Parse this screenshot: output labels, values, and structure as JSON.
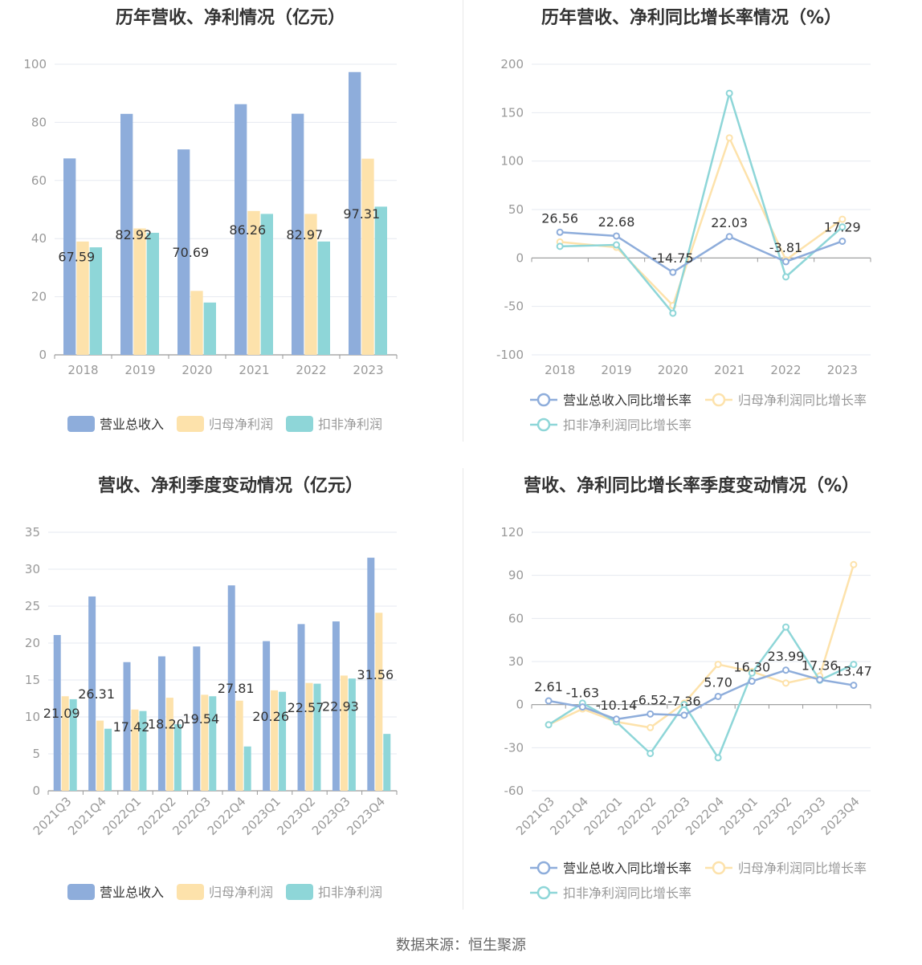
{
  "colors": {
    "revenue": "#8eaddb",
    "net_profit": "#fde2ab",
    "deducted_profit": "#8ed6d8",
    "revenue_growth": "#8eaddb",
    "net_profit_growth": "#fde2ab",
    "deducted_growth": "#8ed6d8",
    "axis_text": "#999999",
    "grid": "#e6e9f0",
    "title": "#333333"
  },
  "source_text": "数据来源：恒生聚源",
  "chart_data": [
    {
      "type": "bar",
      "title": "历年营收、净利情况（亿元）",
      "categories": [
        "2018",
        "2019",
        "2020",
        "2021",
        "2022",
        "2023"
      ],
      "ylim": [
        0,
        100
      ],
      "yticks": [
        "0",
        "20",
        "40",
        "60",
        "80",
        "100"
      ],
      "legend_position": "bottom",
      "series": [
        {
          "name": "营业总收入",
          "values": [
            67.59,
            82.92,
            70.69,
            86.26,
            82.97,
            97.31
          ],
          "labels": [
            "67.59",
            "82.92",
            "70.69",
            "86.26",
            "82.97",
            "97.31"
          ]
        },
        {
          "name": "归母净利润",
          "values": [
            39.0,
            43.5,
            22.0,
            49.5,
            48.5,
            67.5
          ]
        },
        {
          "name": "扣非净利润",
          "values": [
            37.0,
            42.0,
            18.0,
            48.5,
            39.0,
            51.0
          ]
        }
      ]
    },
    {
      "type": "line",
      "title": "历年营收、净利同比增长率情况（%）",
      "categories": [
        "2018",
        "2019",
        "2020",
        "2021",
        "2022",
        "2023"
      ],
      "ylim": [
        -100,
        200
      ],
      "yticks": [
        "-100",
        "-50",
        "0",
        "50",
        "100",
        "150",
        "200"
      ],
      "legend_position": "bottom",
      "series": [
        {
          "name": "营业总收入同比增长率",
          "values": [
            26.56,
            22.68,
            -14.75,
            22.03,
            -3.81,
            17.29
          ],
          "labels": [
            "26.56",
            "22.68",
            "-14.75",
            "22.03",
            "-3.81",
            "17.29"
          ]
        },
        {
          "name": "归母净利润同比增长率",
          "values": [
            16.5,
            11.0,
            -49.0,
            124.0,
            -2.0,
            40.0
          ]
        },
        {
          "name": "扣非净利润同比增长率",
          "values": [
            12.0,
            13.5,
            -57.0,
            170.0,
            -19.5,
            32.0
          ]
        }
      ]
    },
    {
      "type": "bar",
      "title": "营收、净利季度变动情况（亿元）",
      "categories": [
        "2021Q3",
        "2021Q4",
        "2022Q1",
        "2022Q2",
        "2022Q3",
        "2022Q4",
        "2023Q1",
        "2023Q2",
        "2023Q3",
        "2023Q4"
      ],
      "ylim": [
        0,
        35
      ],
      "yticks": [
        "0",
        "5",
        "10",
        "15",
        "20",
        "25",
        "30",
        "35"
      ],
      "legend_position": "bottom",
      "series": [
        {
          "name": "营业总收入",
          "values": [
            21.09,
            26.31,
            17.42,
            18.2,
            19.54,
            27.81,
            20.26,
            22.57,
            22.93,
            31.56
          ],
          "labels": [
            "21.09",
            "26.31",
            "17.42",
            "18.20",
            "19.54",
            "27.81",
            "20.26",
            "22.57",
            "22.93",
            "31.56"
          ]
        },
        {
          "name": "归母净利润",
          "values": [
            12.8,
            9.5,
            11.0,
            12.6,
            13.0,
            12.2,
            13.6,
            14.6,
            15.6,
            24.1
          ]
        },
        {
          "name": "扣非净利润",
          "values": [
            12.4,
            8.4,
            10.8,
            9.0,
            12.8,
            6.0,
            13.4,
            14.5,
            15.2,
            7.7
          ]
        }
      ]
    },
    {
      "type": "line",
      "title": "营收、净利同比增长率季度变动情况（%）",
      "categories": [
        "2021Q3",
        "2021Q4",
        "2022Q1",
        "2022Q2",
        "2022Q3",
        "2022Q4",
        "2023Q1",
        "2023Q2",
        "2023Q3",
        "2023Q4"
      ],
      "ylim": [
        -60,
        120
      ],
      "yticks": [
        "-60",
        "-30",
        "0",
        "30",
        "60",
        "90",
        "120"
      ],
      "legend_position": "bottom",
      "series": [
        {
          "name": "营业总收入同比增长率",
          "values": [
            2.61,
            -1.63,
            -10.14,
            -6.52,
            -7.36,
            5.7,
            16.3,
            23.99,
            17.36,
            13.47
          ],
          "labels": [
            "2.61",
            "-1.63",
            "-10.14",
            "-6.52",
            "-7.36",
            "5.70",
            "16.30",
            "23.99",
            "17.36",
            "13.47"
          ]
        },
        {
          "name": "归母净利润同比增长率",
          "values": [
            -14.0,
            -3.0,
            -12.0,
            -16.0,
            1.0,
            28.0,
            23.0,
            15.0,
            20.0,
            97.5
          ]
        },
        {
          "name": "扣非净利润同比增长率",
          "values": [
            -14.0,
            1.0,
            -12.0,
            -34.0,
            0.0,
            -37.0,
            22.0,
            54.0,
            17.0,
            28.0
          ]
        }
      ]
    }
  ]
}
